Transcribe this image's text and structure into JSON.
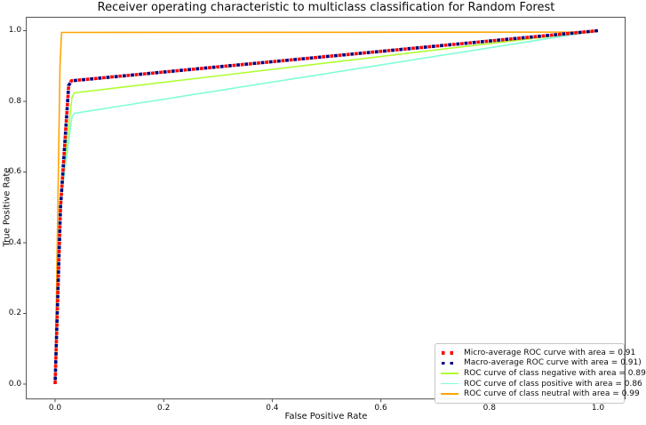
{
  "figure": {
    "background": "#ffffff",
    "spine_color": "#4d4d4d",
    "text_color": "#0d0d0d",
    "legend_border_color": "#c6c6c6"
  },
  "chart_data": {
    "type": "line",
    "title": "Receiver operating characteristic to multiclass classification for Random Forest",
    "xlabel": "False Positive Rate",
    "ylabel": "True Positive Rate",
    "xlim": [
      -0.053,
      1.05
    ],
    "ylim": [
      -0.042,
      1.038
    ],
    "xticks": [
      0.0,
      0.2,
      0.4,
      0.6,
      0.8,
      1.0
    ],
    "yticks": [
      0.0,
      0.2,
      0.4,
      0.6,
      0.8,
      1.0
    ],
    "grid": false,
    "legend_position": "lower right",
    "series": [
      {
        "name": "micro-average",
        "label": "Micro-average ROC curve with area = 0.91",
        "auc": 0.91,
        "color": "#ff0000",
        "style": "dotted",
        "width": 3.6,
        "dash_offset": 0,
        "points": [
          [
            0.0,
            0.0
          ],
          [
            0.01,
            0.5
          ],
          [
            0.025,
            0.845
          ],
          [
            0.03,
            0.858
          ],
          [
            1.0,
            1.0
          ]
        ]
      },
      {
        "name": "macro-average",
        "label": "Macro-average ROC curve with area = 0.91)",
        "auc": 0.91,
        "color": "#000080",
        "style": "dotted",
        "width": 3.6,
        "dash_offset": 4.6,
        "points": [
          [
            0.0,
            0.0
          ],
          [
            0.01,
            0.5
          ],
          [
            0.025,
            0.845
          ],
          [
            0.03,
            0.858
          ],
          [
            1.0,
            1.0
          ]
        ]
      },
      {
        "name": "class-negative",
        "label": "ROC curve of class negative with area = 0.89",
        "auc": 0.89,
        "color": "#adff2f",
        "style": "solid",
        "width": 1.6,
        "dash_offset": 0,
        "points": [
          [
            0.0,
            0.0
          ],
          [
            0.009,
            0.5
          ],
          [
            0.031,
            0.81
          ],
          [
            0.035,
            0.824
          ],
          [
            1.0,
            1.0
          ]
        ]
      },
      {
        "name": "class-positive",
        "label": "ROC curve of class positive with area = 0.86",
        "auc": 0.86,
        "color": "#7fffd4",
        "style": "solid",
        "width": 1.6,
        "dash_offset": 0,
        "points": [
          [
            0.0,
            0.0
          ],
          [
            0.009,
            0.5
          ],
          [
            0.031,
            0.755
          ],
          [
            0.035,
            0.766
          ],
          [
            1.0,
            1.0
          ]
        ]
      },
      {
        "name": "class-neutral",
        "label": "ROC curve of class neutral with area = 0.99",
        "auc": 0.99,
        "color": "#ffa500",
        "style": "solid",
        "width": 1.6,
        "dash_offset": 0,
        "points": [
          [
            0.0,
            0.0
          ],
          [
            0.009,
            0.9
          ],
          [
            0.012,
            0.995
          ],
          [
            0.985,
            0.996
          ],
          [
            1.0,
            1.0
          ]
        ]
      }
    ]
  }
}
